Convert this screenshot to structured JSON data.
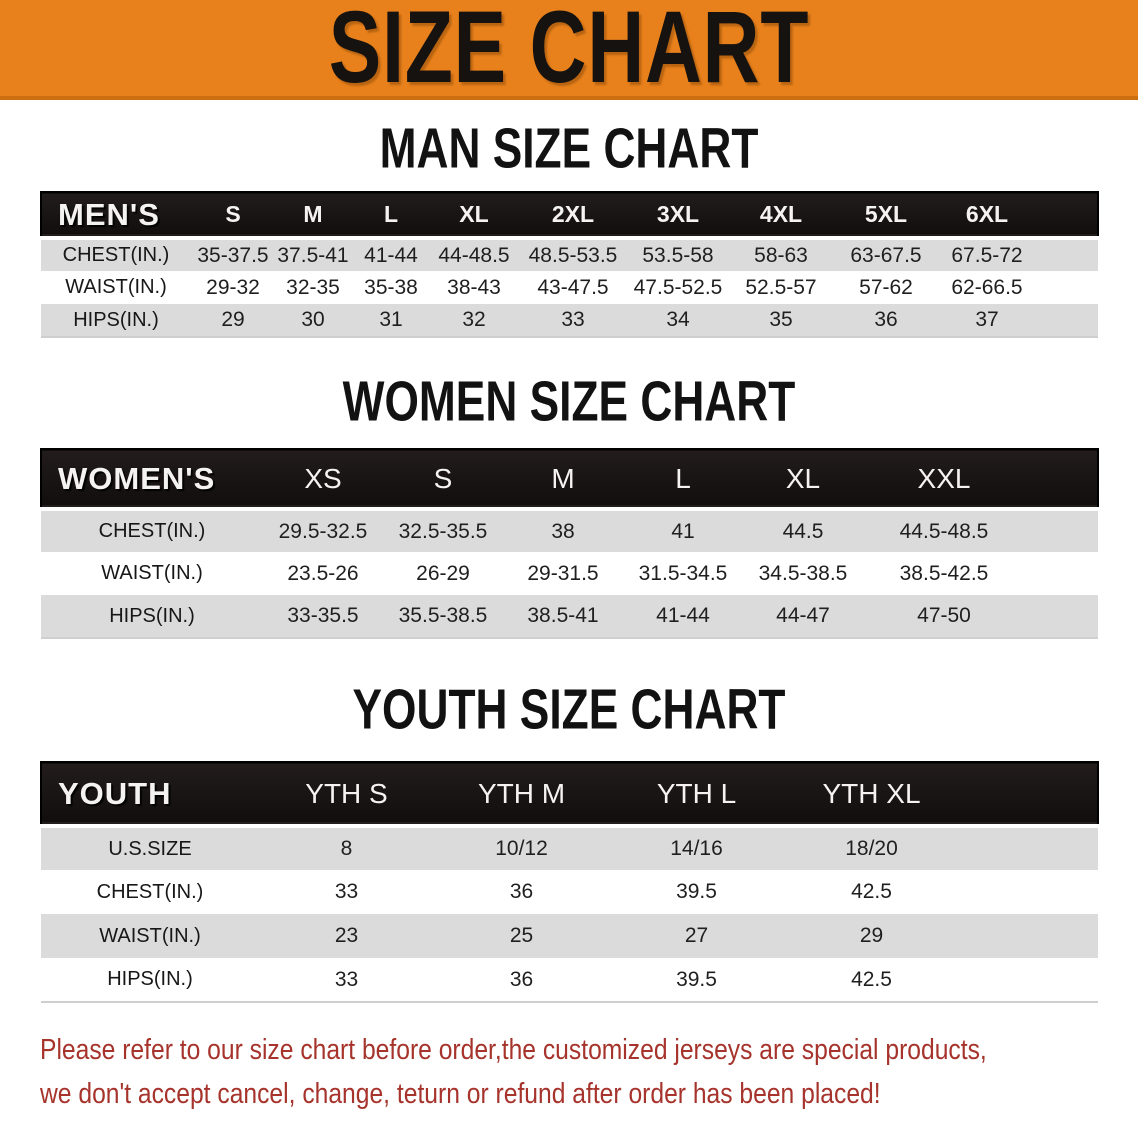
{
  "banner": {
    "title": "SIZE CHART"
  },
  "colors": {
    "banner_bg": "#e8811b",
    "banner_border": "#cb6f10",
    "header_bar": "#171212",
    "row_gray": "#dbdbdb",
    "note_red": "#a6342c"
  },
  "sections": [
    {
      "heading": "MAN SIZE CHART",
      "table": {
        "corner": "MEN'S",
        "columns": [
          "S",
          "M",
          "L",
          "XL",
          "2XL",
          "3XL",
          "4XL",
          "5XL",
          "6XL"
        ],
        "rows": [
          {
            "label": "CHEST(IN.)",
            "values": [
              "35-37.5",
              "37.5-41",
              "41-44",
              "44-48.5",
              "48.5-53.5",
              "53.5-58",
              "58-63",
              "63-67.5",
              "67.5-72"
            ]
          },
          {
            "label": "WAIST(IN.)",
            "values": [
              "29-32",
              "32-35",
              "35-38",
              "38-43",
              "43-47.5",
              "47.5-52.5",
              "52.5-57",
              "57-62",
              "62-66.5"
            ]
          },
          {
            "label": "HIPS(IN.)",
            "values": [
              "29",
              "30",
              "31",
              "32",
              "33",
              "34",
              "35",
              "36",
              "37"
            ]
          }
        ]
      }
    },
    {
      "heading": "WOMEN SIZE CHART",
      "table": {
        "corner": "WOMEN'S",
        "columns": [
          "XS",
          "S",
          "M",
          "L",
          "XL",
          "XXL"
        ],
        "rows": [
          {
            "label": "CHEST(IN.)",
            "values": [
              "29.5-32.5",
              "32.5-35.5",
              "38",
              "41",
              "44.5",
              "44.5-48.5"
            ]
          },
          {
            "label": "WAIST(IN.)",
            "values": [
              "23.5-26",
              "26-29",
              "29-31.5",
              "31.5-34.5",
              "34.5-38.5",
              "38.5-42.5"
            ]
          },
          {
            "label": "HIPS(IN.)",
            "values": [
              "33-35.5",
              "35.5-38.5",
              "38.5-41",
              "41-44",
              "44-47",
              "47-50"
            ]
          }
        ]
      }
    },
    {
      "heading": "YOUTH SIZE CHART",
      "table": {
        "corner": "YOUTH",
        "columns": [
          "YTH S",
          "YTH M",
          "YTH L",
          "YTH XL"
        ],
        "rows": [
          {
            "label": "U.S.SIZE",
            "values": [
              "8",
              "10/12",
              "14/16",
              "18/20"
            ]
          },
          {
            "label": "CHEST(IN.)",
            "values": [
              "33",
              "36",
              "39.5",
              "42.5"
            ]
          },
          {
            "label": "WAIST(IN.)",
            "values": [
              "23",
              "25",
              "27",
              "29"
            ]
          },
          {
            "label": "HIPS(IN.)",
            "values": [
              "33",
              "36",
              "39.5",
              "42.5"
            ]
          }
        ]
      }
    }
  ],
  "footer": {
    "line1": "Please refer to our size chart before order,the customized jerseys are special products,",
    "line2": "we don't accept cancel, change, teturn or refund after order has been placed!"
  }
}
